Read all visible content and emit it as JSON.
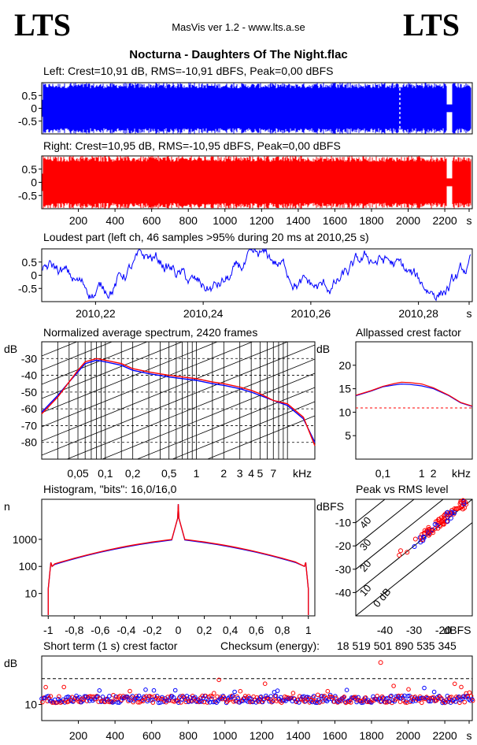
{
  "header": {
    "logo_left": "LTS",
    "logo_right": "LTS",
    "app_title": "MasVis ver 1.2 - www.lts.a.se",
    "file_title": "Nocturna - Daughters Of The Night.flac"
  },
  "colors": {
    "left": "#0000ff",
    "right": "#ff0000",
    "grid": "#000000"
  },
  "chart_data": [
    {
      "id": "left_waveform",
      "type": "area",
      "title": "Left: Crest=10,91 dB, RMS=-10,91 dBFS, Peak=0,00 dBFS",
      "y_ticks": [
        "0.5",
        "0",
        "-0.5"
      ],
      "ylim": [
        -1,
        1
      ],
      "xlim": [
        0,
        2350
      ],
      "color": "#0000ff"
    },
    {
      "id": "right_waveform",
      "type": "area",
      "title": "Right: Crest=10,95 dB, RMS=-10,95 dBFS, Peak=0,00 dBFS",
      "y_ticks": [
        "0.5",
        "0",
        "-0.5"
      ],
      "x_ticks": [
        "200",
        "400",
        "600",
        "800",
        "1000",
        "1200",
        "1400",
        "1600",
        "1800",
        "2000",
        "2200",
        "s"
      ],
      "ylim": [
        -1,
        1
      ],
      "xlim": [
        0,
        2350
      ],
      "color": "#ff0000"
    },
    {
      "id": "loudest_part",
      "type": "line",
      "title": "Loudest part (left  ch, 46 samples >95% during 20 ms at 2010,25 s)",
      "y_ticks": [
        "0.5",
        "0",
        "-0.5"
      ],
      "x_ticks": [
        "2010,22",
        "2010,24",
        "2010,26",
        "2010,28",
        "s"
      ],
      "xlim": [
        2010.21,
        2010.29
      ],
      "ylim": [
        -1,
        1
      ],
      "color": "#0000ff"
    },
    {
      "id": "spectrum",
      "type": "line",
      "title": "Normalized average spectrum, 2420 frames",
      "ylabel": "dB",
      "y_ticks": [
        "-30",
        "-40",
        "-50",
        "-60",
        "-70",
        "-80"
      ],
      "x_ticks": [
        "0,05",
        "0,1",
        "0,2",
        "0,5",
        "1",
        "2",
        "3",
        "4",
        "5",
        "7",
        "kHz"
      ],
      "ylim": [
        -90,
        -20
      ],
      "x": [
        0.02,
        0.03,
        0.04,
        0.05,
        0.06,
        0.08,
        0.1,
        0.15,
        0.2,
        0.3,
        0.5,
        0.7,
        1,
        1.5,
        2,
        3,
        4,
        5,
        7,
        10,
        15,
        20
      ],
      "series": [
        {
          "color": "#0000ff",
          "values": [
            -62,
            -52,
            -44,
            -38,
            -33,
            -31,
            -32,
            -34,
            -37,
            -39,
            -41,
            -42,
            -43,
            -45,
            -46,
            -48,
            -50,
            -52,
            -55,
            -58,
            -66,
            -80
          ]
        },
        {
          "color": "#ff0000",
          "values": [
            -63,
            -53,
            -44,
            -37,
            -32,
            -30,
            -31,
            -33,
            -36,
            -38,
            -40,
            -41,
            -42,
            -44,
            -45,
            -47,
            -49,
            -51,
            -55,
            -57,
            -65,
            -82
          ]
        }
      ]
    },
    {
      "id": "allpassed_crest",
      "type": "line",
      "title": "Allpassed crest factor",
      "ylabel": "dB",
      "y_ticks": [
        "20",
        "15",
        "10",
        "5"
      ],
      "x_ticks": [
        "0,1",
        "1",
        "2",
        "kHz"
      ],
      "ylim": [
        0,
        25
      ],
      "x": [
        0.02,
        0.05,
        0.1,
        0.2,
        0.3,
        0.5,
        1,
        2,
        5,
        10,
        20
      ],
      "series": [
        {
          "color": "#0000ff",
          "values": [
            13.5,
            14.5,
            15.4,
            15.8,
            16.0,
            15.9,
            15.6,
            15.0,
            13.5,
            12.0,
            11.2
          ]
        },
        {
          "color": "#ff0000",
          "values": [
            13.6,
            14.6,
            15.5,
            16.1,
            16.4,
            16.3,
            16.0,
            15.2,
            13.6,
            12.1,
            11.3
          ]
        }
      ],
      "reference_line": 10.9
    },
    {
      "id": "histogram",
      "type": "line",
      "title": "Histogram, \"bits\": 16,0/16,0",
      "ylabel": "n",
      "y_ticks": [
        "1000",
        "100",
        "10"
      ],
      "x_ticks": [
        "-1",
        "-0,8",
        "-0,6",
        "-0,4",
        "-0,2",
        "0",
        "0,2",
        "0,4",
        "0,6",
        "0,8",
        "1"
      ],
      "xlim": [
        -1.05,
        1.05
      ],
      "y_log": true
    },
    {
      "id": "peak_vs_rms",
      "type": "scatter",
      "title": "Peak vs RMS level",
      "ylabel": "dBFS",
      "xlabel": "dBFS",
      "y_ticks": [
        "-10",
        "-20",
        "-30",
        "-40"
      ],
      "x_ticks": [
        "-40",
        "-30",
        "-20",
        "dBFS"
      ],
      "diagonal_labels": [
        "40",
        "30",
        "20",
        "10",
        "0 dB"
      ],
      "xlim": [
        -50,
        -10
      ],
      "ylim": [
        -50,
        0
      ]
    },
    {
      "id": "short_term_crest",
      "type": "scatter",
      "title": "Short term (1 s) crest factor",
      "checksum_label": "Checksum (energy):",
      "checksum_value": "18 519 501 890 535 345",
      "ylabel": "dB",
      "y_ticks": [
        "10"
      ],
      "x_ticks": [
        "200",
        "400",
        "600",
        "800",
        "1000",
        "1200",
        "1400",
        "1600",
        "1800",
        "2000",
        "2200",
        "s"
      ],
      "xlim": [
        0,
        2350
      ]
    }
  ]
}
